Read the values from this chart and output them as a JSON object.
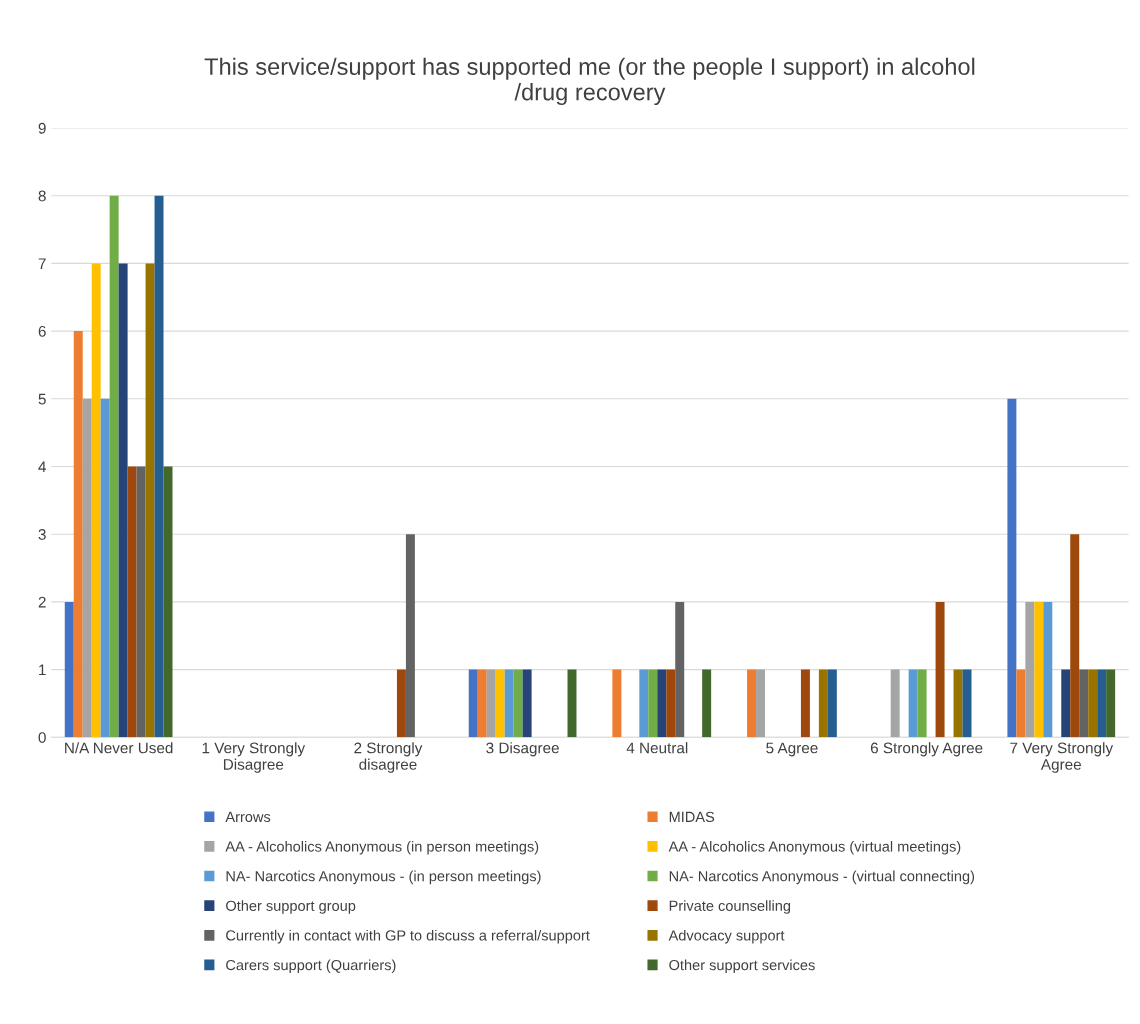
{
  "chart_data": {
    "type": "bar",
    "title": "This service/support has supported me (or the people I support) in alcohol\n/drug recovery",
    "categories": [
      "N/A Never Used",
      "1 Very Strongly\nDisagree",
      "2 Strongly\ndisagree",
      "3 Disagree",
      "4 Neutral",
      "5 Agree",
      "6 Strongly Agree",
      "7 Very Strongly\nAgree"
    ],
    "series": [
      {
        "name": "Arrows",
        "color": "#4472c4",
        "values": [
          2,
          0,
          0,
          1,
          0,
          0,
          0,
          5
        ]
      },
      {
        "name": "MIDAS",
        "color": "#ed7d31",
        "values": [
          6,
          0,
          0,
          1,
          1,
          1,
          0,
          1
        ]
      },
      {
        "name": "AA - Alcoholics Anonymous (in person meetings)",
        "color": "#a5a5a5",
        "values": [
          5,
          0,
          0,
          1,
          0,
          1,
          1,
          2
        ]
      },
      {
        "name": "AA - Alcoholics Anonymous (virtual meetings)",
        "color": "#ffc000",
        "values": [
          7,
          0,
          0,
          1,
          0,
          0,
          0,
          2
        ]
      },
      {
        "name": "NA- Narcotics Anonymous - (in person meetings)",
        "color": "#5b9bd5",
        "values": [
          5,
          0,
          0,
          1,
          1,
          0,
          1,
          2
        ]
      },
      {
        "name": "NA- Narcotics Anonymous - (virtual connecting)",
        "color": "#70ad47",
        "values": [
          8,
          0,
          0,
          1,
          1,
          0,
          1,
          0
        ]
      },
      {
        "name": "Other support group",
        "color": "#264478",
        "values": [
          7,
          0,
          0,
          1,
          1,
          0,
          0,
          1
        ]
      },
      {
        "name": "Private counselling",
        "color": "#9e480e",
        "values": [
          4,
          0,
          1,
          0,
          1,
          1,
          2,
          3
        ]
      },
      {
        "name": "Currently in contact with GP to discuss a referral/support",
        "color": "#636363",
        "values": [
          4,
          0,
          3,
          0,
          2,
          0,
          0,
          1
        ]
      },
      {
        "name": "Advocacy support",
        "color": "#997300",
        "values": [
          7,
          0,
          0,
          0,
          0,
          1,
          1,
          1
        ]
      },
      {
        "name": "Carers support (Quarriers)",
        "color": "#255e91",
        "values": [
          8,
          0,
          0,
          0,
          0,
          1,
          1,
          1
        ]
      },
      {
        "name": "Other support services",
        "color": "#43682b",
        "values": [
          4,
          0,
          0,
          1,
          1,
          0,
          0,
          1
        ]
      }
    ],
    "ylim": [
      0,
      9
    ],
    "yticks": [
      0,
      1,
      2,
      3,
      4,
      5,
      6,
      7,
      8,
      9
    ],
    "grid": "y",
    "legend": "bottom"
  }
}
